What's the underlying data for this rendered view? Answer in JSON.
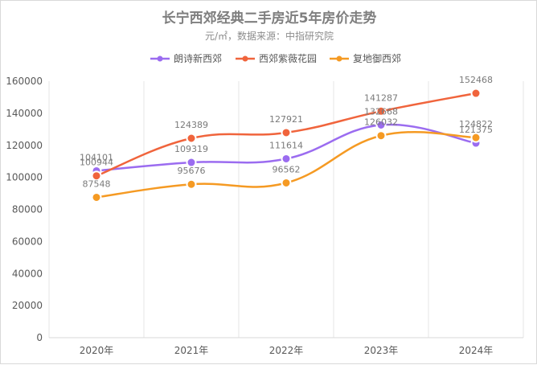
{
  "chart_data": {
    "type": "line",
    "title": "长宁西郊经典二手房近5年房价走势",
    "subtitle": "元/㎡，数据来源：中指研究院",
    "categories": [
      "2020年",
      "2021年",
      "2022年",
      "2023年",
      "2024年"
    ],
    "ylim": [
      0,
      160000
    ],
    "yticks": [
      "0",
      "20000",
      "40000",
      "60000",
      "80000",
      "100000",
      "120000",
      "140000",
      "160000"
    ],
    "legend_position": "top",
    "grid": "vertical",
    "smooth": true,
    "series": [
      {
        "name": "朗诗新西郊",
        "color": "#9b6cf0",
        "values": [
          104101,
          109319,
          111614,
          132668,
          121375
        ],
        "labels": [
          "104101",
          "109319",
          "111614",
          "132668",
          "121375"
        ]
      },
      {
        "name": "西郊紫薇花园",
        "color": "#f0643c",
        "values": [
          100944,
          124389,
          127921,
          141287,
          152468
        ],
        "labels": [
          "100944",
          "124389",
          "127921",
          "141287",
          "152468"
        ]
      },
      {
        "name": "复地御西郊",
        "color": "#f59a23",
        "values": [
          87548,
          95676,
          96562,
          126032,
          124822
        ],
        "labels": [
          "87548",
          "95676",
          "96562",
          "126032",
          "124822"
        ]
      }
    ]
  }
}
